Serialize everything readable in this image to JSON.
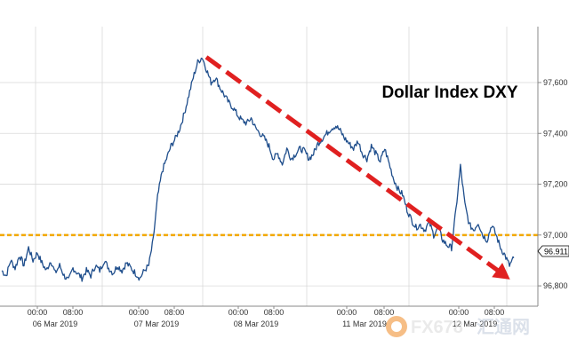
{
  "chart_data": {
    "type": "line",
    "title": "Dollar Index DXY",
    "xlabel": "",
    "ylabel": "",
    "ylim": [
      96.72,
      97.82
    ],
    "y_ticks": [
      "97,600",
      "97,400",
      "97,200",
      "97,000",
      "96,800"
    ],
    "y_tick_values": [
      97.6,
      97.4,
      97.2,
      97.0,
      96.8
    ],
    "x_time_labels": [
      "00:00",
      "08:00",
      "00:00",
      "08:00",
      "00:00",
      "08:00",
      "00:00",
      "08:00",
      "00:00",
      "08:00"
    ],
    "x_date_labels": [
      "06 Mar 2019",
      "07 Mar 2019",
      "08 Mar 2019",
      "11 Mar 2019",
      "12 Mar 2019"
    ],
    "grid": true,
    "last_value": "96.911",
    "reference_line": {
      "value": 97.0,
      "color": "#f2a900"
    },
    "trend_arrow": {
      "from": 97.7,
      "to": 96.85,
      "color": "#e02020"
    },
    "series": [
      {
        "color": "#1f4e8c",
        "values": [
          96.86,
          96.84,
          96.9,
          96.87,
          96.92,
          96.88,
          96.95,
          96.9,
          96.93,
          96.89,
          96.86,
          96.9,
          96.85,
          96.88,
          96.84,
          96.82,
          96.87,
          96.85,
          96.83,
          96.86,
          96.84,
          96.88,
          96.86,
          96.9,
          96.87,
          96.85,
          96.88,
          96.86,
          96.89,
          96.87,
          96.85,
          96.83,
          96.86,
          96.88,
          96.98,
          97.15,
          97.25,
          97.3,
          97.35,
          97.38,
          97.42,
          97.48,
          97.55,
          97.62,
          97.68,
          97.7,
          97.65,
          97.6,
          97.62,
          97.58,
          97.55,
          97.52,
          97.5,
          97.47,
          97.45,
          97.44,
          97.46,
          97.42,
          97.4,
          97.38,
          97.35,
          97.3,
          97.32,
          97.28,
          97.34,
          97.3,
          97.32,
          97.34,
          97.33,
          97.3,
          97.32,
          97.36,
          97.38,
          97.4,
          97.42,
          97.43,
          97.41,
          97.38,
          97.36,
          97.34,
          97.37,
          97.32,
          97.3,
          97.35,
          97.32,
          97.29,
          97.34,
          97.28,
          97.22,
          97.18,
          97.16,
          97.1,
          97.06,
          97.03,
          97.04,
          97.02,
          97.05,
          97.0,
          97.03,
          96.98,
          96.96,
          96.95,
          97.1,
          97.27,
          97.12,
          97.04,
          97.02,
          97.05,
          97.0,
          96.98,
          97.04,
          97.0,
          96.95,
          96.92,
          96.88,
          96.91
        ]
      }
    ]
  },
  "watermark": {
    "text": "FX678",
    "subtext": "汇通网"
  }
}
